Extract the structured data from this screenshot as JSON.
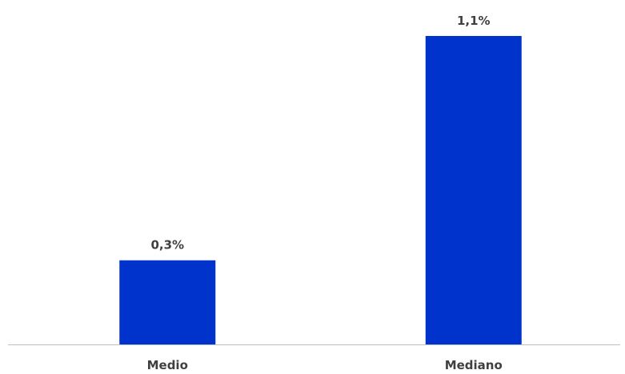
{
  "chart_data": {
    "type": "bar",
    "categories": [
      "Medio",
      "Mediano"
    ],
    "values": [
      0.3,
      1.1
    ],
    "data_labels": [
      "0,3%",
      "1,1%"
    ],
    "unit": "%",
    "ylim": [
      0,
      1.1
    ],
    "bar_color": "#0033CC",
    "axis_color": "#BFBFBF",
    "text_color": "#404040",
    "grid": false,
    "legend": "none"
  }
}
